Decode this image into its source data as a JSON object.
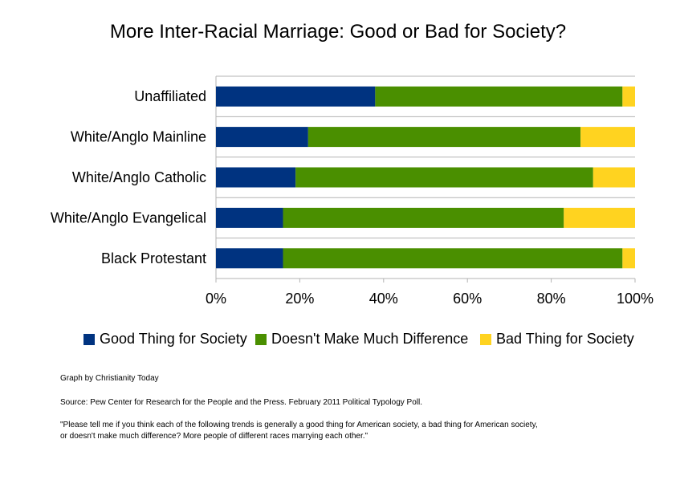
{
  "chart_data": {
    "type": "bar",
    "orientation": "horizontal",
    "stacked": true,
    "title": "More Inter-Racial Marriage: Good or Bad for Society?",
    "categories": [
      "Unaffiliated",
      "White/Anglo Mainline",
      "White/Anglo Catholic",
      "White/Anglo Evangelical",
      "Black Protestant"
    ],
    "series": [
      {
        "name": "Good Thing for Society",
        "color": "#003380",
        "values": [
          38,
          22,
          19,
          16,
          16
        ]
      },
      {
        "name": "Doesn't Make Much Difference",
        "color": "#4a8f00",
        "values": [
          59,
          65,
          71,
          67,
          81
        ]
      },
      {
        "name": "Bad Thing for Society",
        "color": "#ffd320",
        "values": [
          3,
          13,
          10,
          17,
          3
        ]
      }
    ],
    "xlim": [
      0,
      100
    ],
    "x_ticks": [
      "0%",
      "20%",
      "40%",
      "60%",
      "80%",
      "100%"
    ],
    "grid": true,
    "legend_position": "bottom"
  },
  "notes": {
    "credit": "Graph by Christianity Today",
    "source": "Source: Pew Center for Research for the People and the Press.  February 2011 Political Typology Poll.",
    "question_line1": "\"Please tell me if you think each of the following trends is generally a good thing for American society, a bad thing for American society,",
    "question_line2": "or doesn't make much difference?  More people of different races marrying each other.\""
  }
}
